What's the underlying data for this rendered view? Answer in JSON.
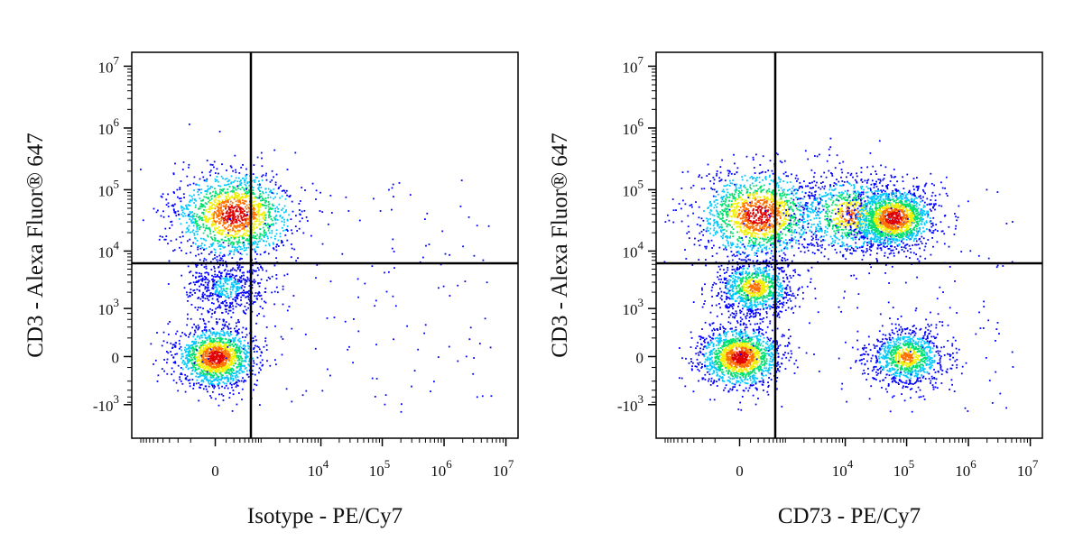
{
  "chart_data": [
    {
      "type": "scatter",
      "subtype": "flow-cytometry-density-plot",
      "xlabel": "Isotype - PE/Cy7",
      "ylabel": "CD3 - Alexa Fluor® 647",
      "x_scale": "biexponential",
      "y_scale": "biexponential",
      "x_ticks": [
        {
          "value": 0,
          "base": "0",
          "exp": ""
        },
        {
          "value": 10000,
          "base": "10",
          "exp": "4"
        },
        {
          "value": 100000,
          "base": "10",
          "exp": "5"
        },
        {
          "value": 1000000,
          "base": "10",
          "exp": "6"
        },
        {
          "value": 10000000,
          "base": "10",
          "exp": "7"
        }
      ],
      "y_ticks": [
        {
          "value": -1000,
          "base": "-10",
          "exp": "3"
        },
        {
          "value": 0,
          "base": "0",
          "exp": ""
        },
        {
          "value": 1000,
          "base": "10",
          "exp": "3"
        },
        {
          "value": 10000,
          "base": "10",
          "exp": "4"
        },
        {
          "value": 100000,
          "base": "10",
          "exp": "5"
        },
        {
          "value": 1000000,
          "base": "10",
          "exp": "6"
        },
        {
          "value": 10000000,
          "base": "10",
          "exp": "7"
        }
      ],
      "quadrant_gate": {
        "x": 1500,
        "y": 8000
      },
      "populations": [
        {
          "x_center": 200,
          "y_center": 40000,
          "spread": "high",
          "density": "high"
        },
        {
          "x_center": 100,
          "y_center": 2500,
          "spread": "medium",
          "density": "low"
        },
        {
          "x_center": 0,
          "y_center": 0,
          "spread": "medium",
          "density": "high"
        }
      ],
      "colormap": [
        "#0000ff",
        "#00c8ff",
        "#00e070",
        "#f0f000",
        "#ff7000",
        "#e00000"
      ]
    },
    {
      "type": "scatter",
      "subtype": "flow-cytometry-density-plot",
      "xlabel": "CD73 - PE/Cy7",
      "ylabel": "CD3 - Alexa Fluor® 647",
      "x_scale": "biexponential",
      "y_scale": "biexponential",
      "x_ticks": [
        {
          "value": 0,
          "base": "0",
          "exp": ""
        },
        {
          "value": 10000,
          "base": "10",
          "exp": "4"
        },
        {
          "value": 100000,
          "base": "10",
          "exp": "5"
        },
        {
          "value": 1000000,
          "base": "10",
          "exp": "6"
        },
        {
          "value": 10000000,
          "base": "10",
          "exp": "7"
        }
      ],
      "y_ticks": [
        {
          "value": -1000,
          "base": "-10",
          "exp": "3"
        },
        {
          "value": 0,
          "base": "0",
          "exp": ""
        },
        {
          "value": 1000,
          "base": "10",
          "exp": "3"
        },
        {
          "value": 10000,
          "base": "10",
          "exp": "4"
        },
        {
          "value": 100000,
          "base": "10",
          "exp": "5"
        },
        {
          "value": 1000000,
          "base": "10",
          "exp": "6"
        },
        {
          "value": 10000000,
          "base": "10",
          "exp": "7"
        }
      ],
      "quadrant_gate": {
        "x": 1500,
        "y": 8000
      },
      "populations": [
        {
          "x_center": 200,
          "y_center": 40000,
          "spread": "high",
          "density": "high"
        },
        {
          "x_center": 12000,
          "y_center": 40000,
          "spread": "high",
          "density": "medium"
        },
        {
          "x_center": 60000,
          "y_center": 35000,
          "spread": "medium",
          "density": "high"
        },
        {
          "x_center": 150,
          "y_center": 2500,
          "spread": "medium",
          "density": "medium"
        },
        {
          "x_center": 0,
          "y_center": 0,
          "spread": "medium",
          "density": "high"
        },
        {
          "x_center": 100000,
          "y_center": 0,
          "spread": "medium",
          "density": "medium"
        }
      ],
      "colormap": [
        "#0000ff",
        "#00c8ff",
        "#00e070",
        "#f0f000",
        "#ff7000",
        "#e00000"
      ]
    }
  ]
}
